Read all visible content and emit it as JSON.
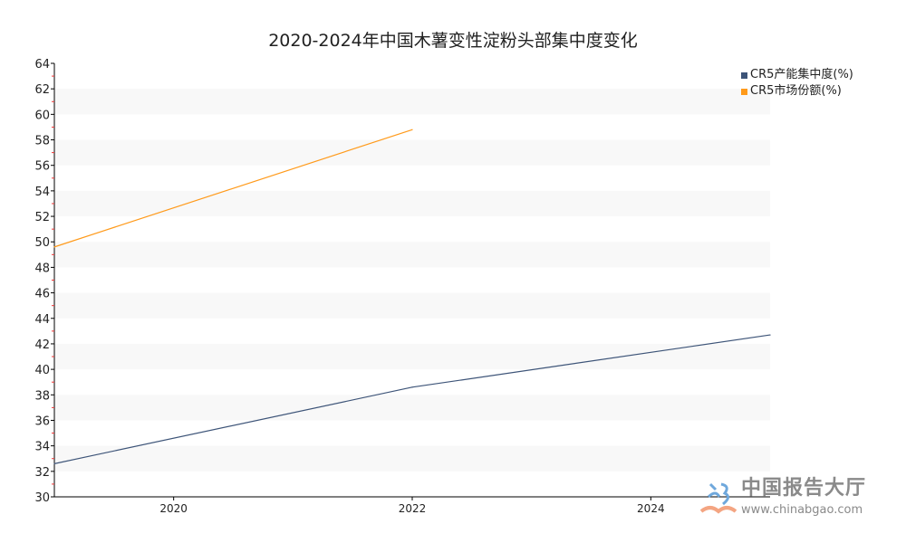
{
  "chart_data": {
    "type": "line",
    "title": "2020-2024年中国木薯变性淀粉头部集中度变化",
    "xlabel": "",
    "ylabel": "",
    "xlim": [
      2019,
      2025
    ],
    "ylim": [
      30,
      64
    ],
    "x_ticks": [
      "2020",
      "2022",
      "2024"
    ],
    "y_ticks": [
      "30",
      "32",
      "34",
      "36",
      "38",
      "40",
      "42",
      "44",
      "46",
      "48",
      "50",
      "52",
      "54",
      "56",
      "58",
      "60",
      "62",
      "64"
    ],
    "grid": "alternating horizontal bands",
    "legend_position": "top-right",
    "series": [
      {
        "name": "CR5产能集中度(%)",
        "color": "#3d5478",
        "x": [
          2019,
          2022,
          2025
        ],
        "values": [
          32.6,
          38.6,
          42.7
        ]
      },
      {
        "name": "CR5市场份额(%)",
        "color": "#ff9a1a",
        "x": [
          2019,
          2022
        ],
        "values": [
          49.6,
          58.8
        ]
      }
    ]
  },
  "watermark": {
    "name": "中国报告大厅",
    "url": "www.chinabgao.com"
  }
}
